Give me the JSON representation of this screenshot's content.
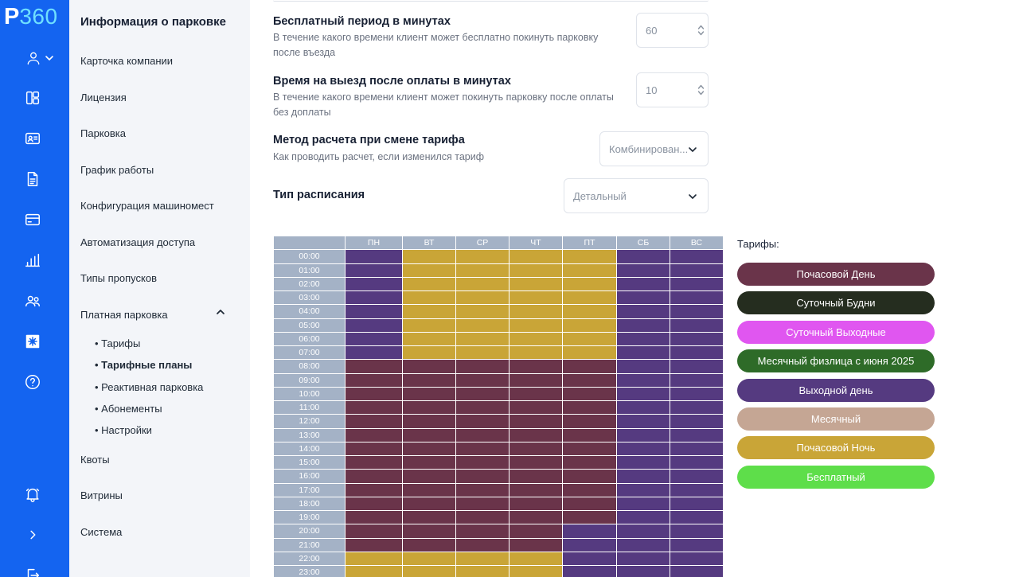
{
  "brand": {
    "p": "P",
    "n": "360"
  },
  "sidebar": {
    "title": "Информация о парковке",
    "items": [
      "Карточка компании",
      "Лицензия",
      "Парковка",
      "График работы",
      "Конфигурация машиномест",
      "Автоматизация доступа",
      "Типы пропусков",
      "Платная парковка"
    ],
    "sub_items": [
      "• Тарифы",
      "• Тарифные планы",
      "• Реактивная парковка",
      "• Абонементы",
      "• Настройки"
    ],
    "active_sub": "• Тарифные планы",
    "items_after": [
      "Квоты",
      "Витрины",
      "Система"
    ]
  },
  "form": {
    "free_period": {
      "title": "Бесплатный период в минутах",
      "desc": "В течение какого времени клиент может бесплатно покинуть парковку после въезда",
      "value": "60"
    },
    "exit_time": {
      "title": "Время на выезд после оплаты в минутах",
      "desc": "В течение какого времени клиент может покинуть парковку после оплаты без доплаты",
      "value": "10"
    },
    "calc_method": {
      "title": "Метод расчета при смене тарифа",
      "desc": "Как проводить расчет, если изменился тариф",
      "value": "Комбинирован..."
    },
    "schedule_type": {
      "title": "Тип расписания",
      "value": "Детальный"
    }
  },
  "schedule": {
    "days": [
      "ПН",
      "ВТ",
      "СР",
      "ЧТ",
      "ПТ",
      "СБ",
      "ВС"
    ],
    "hours": [
      "00:00",
      "01:00",
      "02:00",
      "03:00",
      "04:00",
      "05:00",
      "06:00",
      "07:00",
      "08:00",
      "09:00",
      "10:00",
      "11:00",
      "12:00",
      "13:00",
      "14:00",
      "15:00",
      "16:00",
      "17:00",
      "18:00",
      "19:00",
      "20:00",
      "21:00",
      "22:00",
      "23:00"
    ],
    "tariff_colors": {
      "day": "#6a344a",
      "night": "#c9a537",
      "weekend": "#553a80"
    },
    "cells": [
      [
        "weekend",
        "night",
        "night",
        "night",
        "night",
        "weekend",
        "weekend"
      ],
      [
        "weekend",
        "night",
        "night",
        "night",
        "night",
        "weekend",
        "weekend"
      ],
      [
        "weekend",
        "night",
        "night",
        "night",
        "night",
        "weekend",
        "weekend"
      ],
      [
        "weekend",
        "night",
        "night",
        "night",
        "night",
        "weekend",
        "weekend"
      ],
      [
        "weekend",
        "night",
        "night",
        "night",
        "night",
        "weekend",
        "weekend"
      ],
      [
        "weekend",
        "night",
        "night",
        "night",
        "night",
        "weekend",
        "weekend"
      ],
      [
        "weekend",
        "night",
        "night",
        "night",
        "night",
        "weekend",
        "weekend"
      ],
      [
        "weekend",
        "night",
        "night",
        "night",
        "night",
        "weekend",
        "weekend"
      ],
      [
        "day",
        "day",
        "day",
        "day",
        "day",
        "weekend",
        "weekend"
      ],
      [
        "day",
        "day",
        "day",
        "day",
        "day",
        "weekend",
        "weekend"
      ],
      [
        "day",
        "day",
        "day",
        "day",
        "day",
        "weekend",
        "weekend"
      ],
      [
        "day",
        "day",
        "day",
        "day",
        "day",
        "weekend",
        "weekend"
      ],
      [
        "day",
        "day",
        "day",
        "day",
        "day",
        "weekend",
        "weekend"
      ],
      [
        "day",
        "day",
        "day",
        "day",
        "day",
        "weekend",
        "weekend"
      ],
      [
        "day",
        "day",
        "day",
        "day",
        "day",
        "weekend",
        "weekend"
      ],
      [
        "day",
        "day",
        "day",
        "day",
        "day",
        "weekend",
        "weekend"
      ],
      [
        "day",
        "day",
        "day",
        "day",
        "day",
        "weekend",
        "weekend"
      ],
      [
        "day",
        "day",
        "day",
        "day",
        "day",
        "weekend",
        "weekend"
      ],
      [
        "day",
        "day",
        "day",
        "day",
        "day",
        "weekend",
        "weekend"
      ],
      [
        "day",
        "day",
        "day",
        "day",
        "day",
        "weekend",
        "weekend"
      ],
      [
        "day",
        "day",
        "day",
        "day",
        "weekend",
        "weekend",
        "weekend"
      ],
      [
        "day",
        "day",
        "day",
        "day",
        "weekend",
        "weekend",
        "weekend"
      ],
      [
        "night",
        "night",
        "night",
        "night",
        "weekend",
        "weekend",
        "weekend"
      ],
      [
        "night",
        "night",
        "night",
        "night",
        "weekend",
        "weekend",
        "weekend"
      ]
    ]
  },
  "legend": {
    "title": "Тарифы:",
    "items": [
      {
        "label": "Почасовой День",
        "color": "#6a344a"
      },
      {
        "label": "Суточный Будни",
        "color": "#252d1f"
      },
      {
        "label": "Суточный Выходные",
        "color": "#e056f0"
      },
      {
        "label": "Месячный физлица с июня 2025",
        "color": "#2e6b28"
      },
      {
        "label": "Выходной день",
        "color": "#553a80"
      },
      {
        "label": "Месячный",
        "color": "#c5a694"
      },
      {
        "label": "Почасовой Ночь",
        "color": "#c9a537"
      },
      {
        "label": "Бесплатный",
        "color": "#5ede4a"
      }
    ]
  },
  "icons": [
    "user-icon",
    "dashboard-icon",
    "id-card-icon",
    "document-icon",
    "card-icon",
    "chart-icon",
    "users-icon",
    "settings-icon",
    "help-icon",
    "bell-icon",
    "expand-icon",
    "logout-icon"
  ]
}
